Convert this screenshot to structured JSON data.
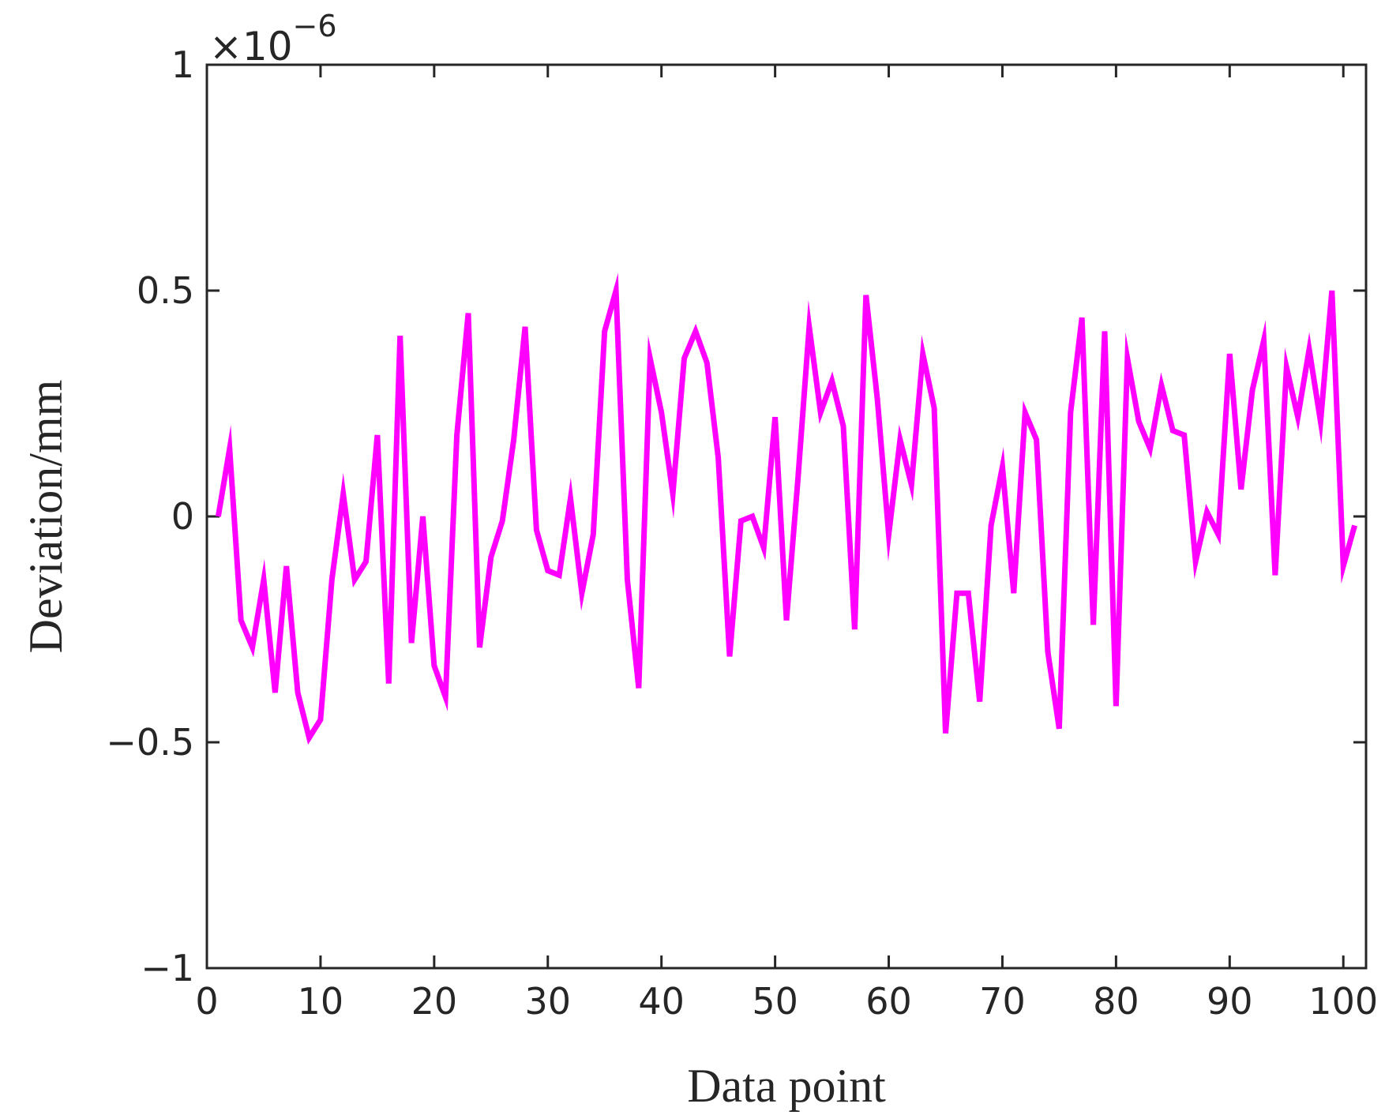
{
  "chart_data": {
    "type": "line",
    "title": "",
    "xlabel": "Data point",
    "ylabel": "Deviation/mm",
    "xlim": [
      0,
      102
    ],
    "ylim": [
      -1,
      1
    ],
    "y_scale_exponent": {
      "base": "×10",
      "power": "−6"
    },
    "x_ticks": [
      0,
      10,
      20,
      30,
      40,
      50,
      60,
      70,
      80,
      90,
      100
    ],
    "y_ticks": [
      -1,
      -0.5,
      0,
      0.5,
      1
    ],
    "y_tick_labels": [
      "−1",
      "−0.5",
      "0",
      "0.5",
      "1"
    ],
    "x_tick_labels": [
      "0",
      "10",
      "20",
      "30",
      "40",
      "50",
      "60",
      "70",
      "80",
      "90",
      "100"
    ],
    "grid": false,
    "line_color": "#FF00FF",
    "series": [
      {
        "x": [
          1,
          2,
          3,
          4,
          5,
          6,
          7,
          8,
          9,
          10,
          11,
          12,
          13,
          14,
          15,
          16,
          17,
          18,
          19,
          20,
          21,
          22,
          23,
          24,
          25,
          26,
          27,
          28,
          29,
          30,
          31,
          32,
          33,
          34,
          35,
          36,
          37,
          38,
          39,
          40,
          41,
          42,
          43,
          44,
          45,
          46,
          47,
          48,
          49,
          50,
          51,
          52,
          53,
          54,
          55,
          56,
          57,
          58,
          59,
          60,
          61,
          62,
          63,
          64,
          65,
          66,
          67,
          68,
          69,
          70,
          71,
          72,
          73,
          74,
          75,
          76,
          77,
          78,
          79,
          80,
          81,
          82,
          83,
          84,
          85,
          86,
          87,
          88,
          89,
          90,
          91,
          92,
          93,
          94,
          95,
          96,
          97,
          98,
          99,
          100,
          101
        ],
        "values": [
          0.0,
          0.15,
          -0.23,
          -0.29,
          -0.14,
          -0.39,
          -0.11,
          -0.39,
          -0.49,
          -0.45,
          -0.14,
          0.05,
          -0.14,
          -0.1,
          0.18,
          -0.37,
          0.4,
          -0.28,
          0.0,
          -0.33,
          -0.4,
          0.18,
          0.45,
          -0.29,
          -0.09,
          -0.01,
          0.17,
          0.42,
          -0.03,
          -0.12,
          -0.13,
          0.04,
          -0.17,
          -0.04,
          0.41,
          0.5,
          -0.14,
          -0.38,
          0.35,
          0.23,
          0.05,
          0.35,
          0.41,
          0.34,
          0.13,
          -0.31,
          -0.01,
          0.0,
          -0.07,
          0.22,
          -0.23,
          0.08,
          0.42,
          0.23,
          0.3,
          0.2,
          -0.25,
          0.49,
          0.26,
          -0.04,
          0.17,
          0.07,
          0.36,
          0.24,
          -0.48,
          -0.17,
          -0.17,
          -0.41,
          -0.02,
          0.11,
          -0.17,
          0.23,
          0.17,
          -0.3,
          -0.47,
          0.23,
          0.44,
          -0.24,
          0.41,
          -0.42,
          0.35,
          0.21,
          0.15,
          0.29,
          0.19,
          0.18,
          -0.1,
          0.01,
          -0.04,
          0.36,
          0.06,
          0.28,
          0.39,
          -0.13,
          0.33,
          0.22,
          0.37,
          0.21,
          0.5,
          -0.11,
          -0.02
        ]
      }
    ]
  }
}
